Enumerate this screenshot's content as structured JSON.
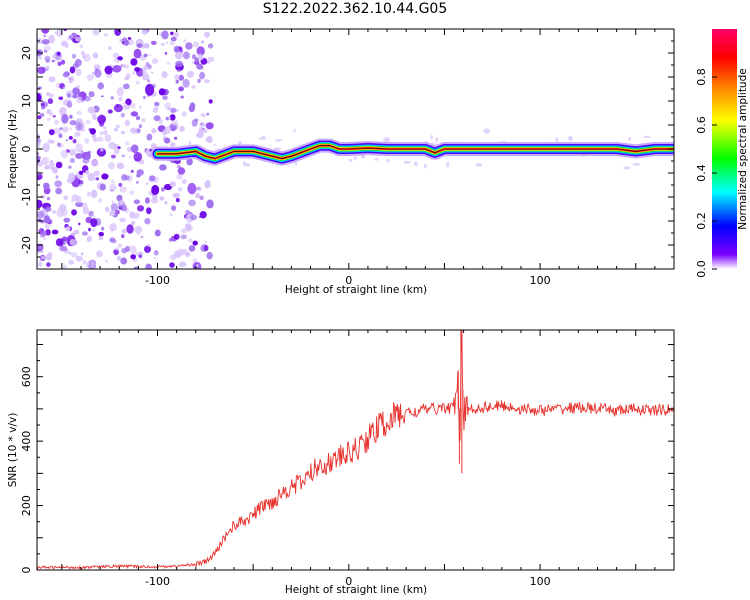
{
  "title": "S122.2022.362.10.44.G05",
  "colors": {
    "snr_line": "#e8322e",
    "ridge": "#e8322e",
    "frame": "#000000"
  },
  "chart_data": [
    {
      "type": "heatmap",
      "xlabel": "Height of straight line (km)",
      "ylabel": "Frequency (Hz)",
      "xlim": [
        -163,
        170
      ],
      "ylim": [
        -25,
        25
      ],
      "xticks": [
        -100,
        0,
        100
      ],
      "yticks": [
        -20,
        -10,
        0,
        10,
        20
      ],
      "colorbar": {
        "label": "Normalized spectral amplitude",
        "range": [
          0,
          1
        ],
        "ticks": [
          "0.0",
          "0.2",
          "0.4",
          "0.6",
          "0.8"
        ],
        "colormap": [
          "#ffffff",
          "#7b00ff",
          "#0000ff",
          "#00ffff",
          "#00ff00",
          "#ffff00",
          "#ff8000",
          "#ff0000",
          "#ff0066"
        ]
      },
      "ridge": {
        "x": [
          -100,
          -90,
          -80,
          -75,
          -70,
          -60,
          -50,
          -40,
          -35,
          -30,
          -20,
          -15,
          -10,
          -5,
          0,
          10,
          20,
          40,
          45,
          50,
          60,
          80,
          100,
          120,
          140,
          150,
          160,
          170
        ],
        "y": [
          -1,
          -1,
          -0.5,
          -1.5,
          -2,
          -0.5,
          -0.5,
          -1.5,
          -2,
          -1.5,
          0,
          0.7,
          0.7,
          0,
          0,
          0.2,
          0,
          0,
          -0.8,
          0,
          0,
          0,
          0,
          0,
          0,
          -0.5,
          0,
          0
        ]
      },
      "noise_region_x": [
        -163,
        -80
      ]
    },
    {
      "type": "line",
      "xlabel": "Height of straight line (km)",
      "ylabel": "SNR (10 * v/v)",
      "xlim": [
        -163,
        170
      ],
      "ylim": [
        0,
        745
      ],
      "xticks": [
        -100,
        0,
        100
      ],
      "yticks": [
        0,
        200,
        400,
        600
      ],
      "series": [
        {
          "x": [
            -163,
            -140,
            -120,
            -100,
            -90,
            -80,
            -75,
            -70,
            -65,
            -60,
            -55,
            -50,
            -45,
            -40,
            -35,
            -30,
            -25,
            -20,
            -15,
            -10,
            -5,
            0,
            5,
            10,
            15,
            20,
            25,
            30,
            35,
            40,
            45,
            50,
            55,
            57,
            58,
            59,
            60,
            62,
            65,
            70,
            80,
            90,
            100,
            110,
            120,
            130,
            140,
            150,
            160,
            170
          ],
          "y": [
            8,
            8,
            12,
            10,
            12,
            18,
            25,
            50,
            100,
            140,
            150,
            170,
            200,
            210,
            240,
            260,
            270,
            300,
            330,
            330,
            350,
            360,
            380,
            410,
            440,
            460,
            480,
            490,
            490,
            500,
            500,
            505,
            500,
            620,
            300,
            745,
            480,
            495,
            500,
            505,
            510,
            500,
            495,
            500,
            505,
            500,
            495,
            500,
            495,
            500
          ]
        }
      ]
    }
  ]
}
